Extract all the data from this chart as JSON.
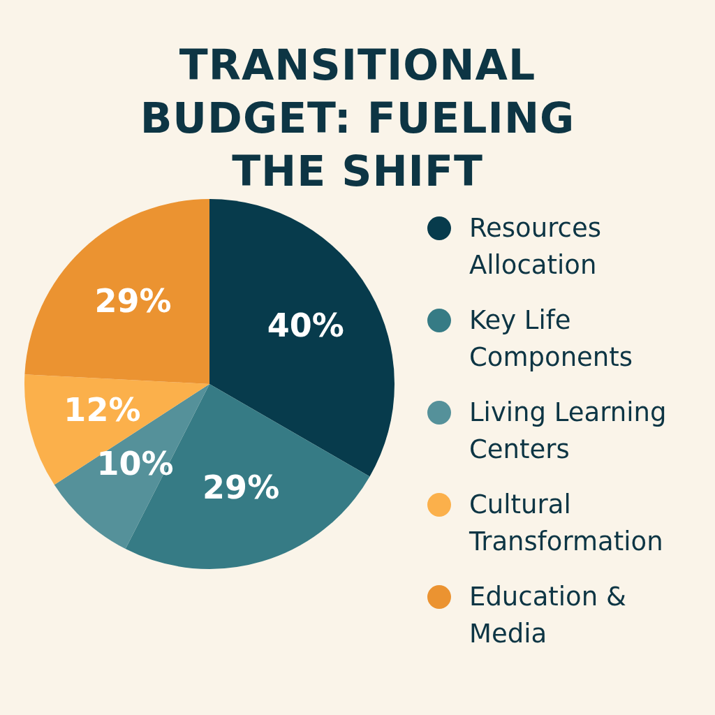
{
  "chart_data": {
    "type": "pie",
    "title": "TRANSITIONAL BUDGET: FUELING THE SHIFT",
    "categories": [
      "Resources Allocation",
      "Key Life Components",
      "Living Learning Centers",
      "Cultural Transformation",
      "Education & Media"
    ],
    "values": [
      40,
      29,
      10,
      12,
      29
    ],
    "colors": [
      "#073b4c",
      "#367b85",
      "#55919a",
      "#fbb04b",
      "#eb9331"
    ],
    "value_labels": [
      "40%",
      "29%",
      "10%",
      "12%",
      "29%"
    ],
    "legend": "right"
  }
}
